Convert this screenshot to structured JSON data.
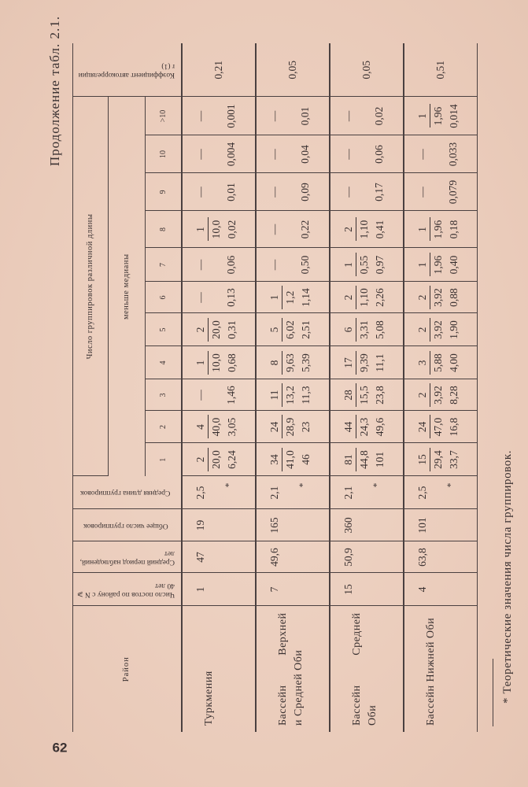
{
  "page_number": "62",
  "continuation": "Продолжение табл. 2.1.",
  "header": {
    "region": "Район",
    "stations": "Число постов по району с N ⩾ 40 лет",
    "period": "Средний период наблюдений, лет",
    "total_groups": "Общее число группировок",
    "mean_length": "Средняя длина группировок",
    "groups_title": "Число группировок различной длины",
    "below_median": "меньше медианы",
    "lengths": [
      "1",
      "2",
      "3",
      "4",
      "5",
      "6",
      "7",
      "8",
      "9",
      "10",
      ">10"
    ],
    "autocorr": "Коэффициент автокорреляции r (1)"
  },
  "rows": [
    {
      "region_lines": [
        "Туркмения"
      ],
      "stations": "1",
      "period": "47",
      "total_groups": "19",
      "mean_length": "2,5",
      "mark": "*",
      "cells": [
        {
          "count": "2",
          "pct": "20,0",
          "theo": "6,24"
        },
        {
          "count": "4",
          "pct": "40,0",
          "theo": "3,05"
        },
        {
          "count": "—",
          "pct": "",
          "theo": "1,46"
        },
        {
          "count": "1",
          "pct": "10,0",
          "theo": "0,68"
        },
        {
          "count": "2",
          "pct": "20,0",
          "theo": "0,31"
        },
        {
          "count": "—",
          "pct": "",
          "theo": "0,13"
        },
        {
          "count": "—",
          "pct": "",
          "theo": "0,06"
        },
        {
          "count": "1",
          "pct": "10,0",
          "theo": "0,02"
        },
        {
          "count": "—",
          "pct": "",
          "theo": "0,01"
        },
        {
          "count": "—",
          "pct": "",
          "theo": "0,004"
        },
        {
          "count": "—",
          "pct": "",
          "theo": "0,001"
        }
      ],
      "autocorr": "0,21"
    },
    {
      "region_lines": [
        "Бассейн Верхней",
        "и Средней Оби"
      ],
      "stations": "7",
      "period": "49,6",
      "total_groups": "165",
      "mean_length": "2,1",
      "mark": "*",
      "cells": [
        {
          "count": "34",
          "pct": "41,0",
          "theo": "46"
        },
        {
          "count": "24",
          "pct": "28,9",
          "theo": "23"
        },
        {
          "count": "11",
          "pct": "13,2",
          "theo": "11,3"
        },
        {
          "count": "8",
          "pct": "9,63",
          "theo": "5,39"
        },
        {
          "count": "5",
          "pct": "6,02",
          "theo": "2,51"
        },
        {
          "count": "1",
          "pct": "1,2",
          "theo": "1,14"
        },
        {
          "count": "—",
          "pct": "",
          "theo": "0,50"
        },
        {
          "count": "—",
          "pct": "",
          "theo": "0,22"
        },
        {
          "count": "—",
          "pct": "",
          "theo": "0,09"
        },
        {
          "count": "—",
          "pct": "",
          "theo": "0,04"
        },
        {
          "count": "—",
          "pct": "",
          "theo": "0,01"
        }
      ],
      "autocorr": "0,05"
    },
    {
      "region_lines": [
        "Бассейн Средней",
        "Оби"
      ],
      "stations": "15",
      "period": "50,9",
      "total_groups": "360",
      "mean_length": "2,1",
      "mark": "*",
      "cells": [
        {
          "count": "81",
          "pct": "44,8",
          "theo": "101"
        },
        {
          "count": "44",
          "pct": "24,3",
          "theo": "49,6"
        },
        {
          "count": "28",
          "pct": "15,5",
          "theo": "23,8"
        },
        {
          "count": "17",
          "pct": "9,39",
          "theo": "11,1"
        },
        {
          "count": "6",
          "pct": "3,31",
          "theo": "5,08"
        },
        {
          "count": "2",
          "pct": "1,10",
          "theo": "2,26"
        },
        {
          "count": "1",
          "pct": "0,55",
          "theo": "0,97"
        },
        {
          "count": "2",
          "pct": "1,10",
          "theo": "0,41"
        },
        {
          "count": "—",
          "pct": "",
          "theo": "0,17"
        },
        {
          "count": "—",
          "pct": "",
          "theo": "0,06"
        },
        {
          "count": "—",
          "pct": "",
          "theo": "0,02"
        }
      ],
      "autocorr": "0,05"
    },
    {
      "region_lines": [
        "Бассейн Нижней Оби"
      ],
      "stations": "4",
      "period": "63,8",
      "total_groups": "101",
      "mean_length": "2,5",
      "mark": "*",
      "cells": [
        {
          "count": "15",
          "pct": "29,4",
          "theo": "33,7"
        },
        {
          "count": "24",
          "pct": "47,0",
          "theo": "16,8"
        },
        {
          "count": "2",
          "pct": "3,92",
          "theo": "8,28"
        },
        {
          "count": "3",
          "pct": "5,88",
          "theo": "4,00"
        },
        {
          "count": "2",
          "pct": "3,92",
          "theo": "1,90"
        },
        {
          "count": "2",
          "pct": "3,92",
          "theo": "0,88"
        },
        {
          "count": "1",
          "pct": "1,96",
          "theo": "0,40"
        },
        {
          "count": "1",
          "pct": "1,96",
          "theo": "0,18"
        },
        {
          "count": "—",
          "pct": "",
          "theo": "0,079"
        },
        {
          "count": "—",
          "pct": "",
          "theo": "0,033"
        },
        {
          "count": "1",
          "pct": "1,96",
          "theo": "0,014"
        }
      ],
      "autocorr": "0,51"
    }
  ],
  "footnote": "* Теоретические значения числа группировок."
}
